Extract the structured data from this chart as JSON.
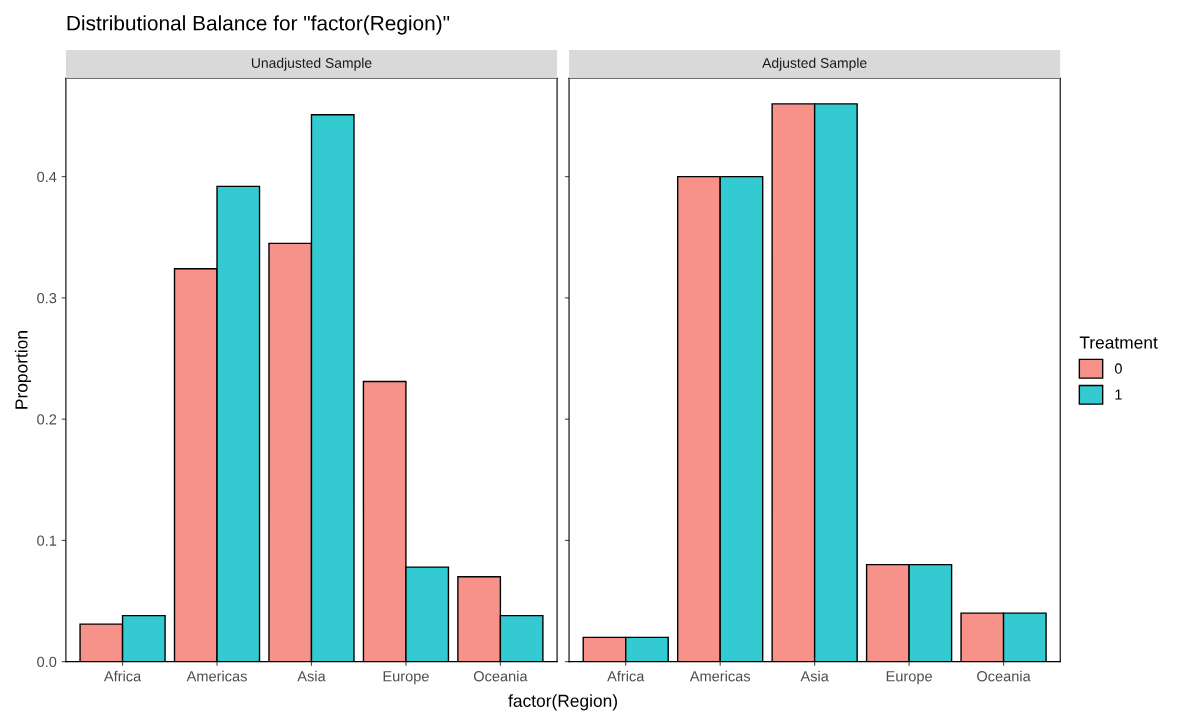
{
  "chart_data": [
    {
      "type": "bar",
      "title": "Distributional Balance for \"factor(Region)\"",
      "subtitle": "Unadjusted Sample",
      "xlabel": "factor(Region)",
      "ylabel": "Proportion",
      "categories": [
        "Africa",
        "Americas",
        "Asia",
        "Europe",
        "Oceania"
      ],
      "series": [
        {
          "name": "0",
          "color": "#f7928a",
          "values": [
            0.031,
            0.324,
            0.345,
            0.231,
            0.07
          ]
        },
        {
          "name": "1",
          "color": "#33cbd1",
          "values": [
            0.038,
            0.392,
            0.451,
            0.078,
            0.038
          ]
        }
      ],
      "ylim": [
        0,
        0.481
      ],
      "yticks": [
        {
          "value": 0,
          "label": "0.0"
        },
        0.1,
        0.2,
        0.3,
        0.4
      ],
      "grid": false,
      "legend": "right",
      "legend_title": "Treatment"
    },
    {
      "type": "bar",
      "subtitle": "Adjusted Sample",
      "categories": [
        "Africa",
        "Americas",
        "Asia",
        "Europe",
        "Oceania"
      ],
      "series": [
        {
          "color": "#f7928a",
          "values": [
            0.02,
            0.4,
            0.46,
            0.08,
            0.04
          ]
        },
        {
          "color": "#33cbd1",
          "values": [
            0.02,
            0.4,
            0.46,
            0.08,
            0.04
          ]
        }
      ],
      "ylim": [
        0,
        0.481
      ],
      "yticks": [
        0,
        0.1,
        0.2,
        0.3,
        0.4
      ],
      "grid": false,
      "tick_labels": "x"
    }
  ]
}
